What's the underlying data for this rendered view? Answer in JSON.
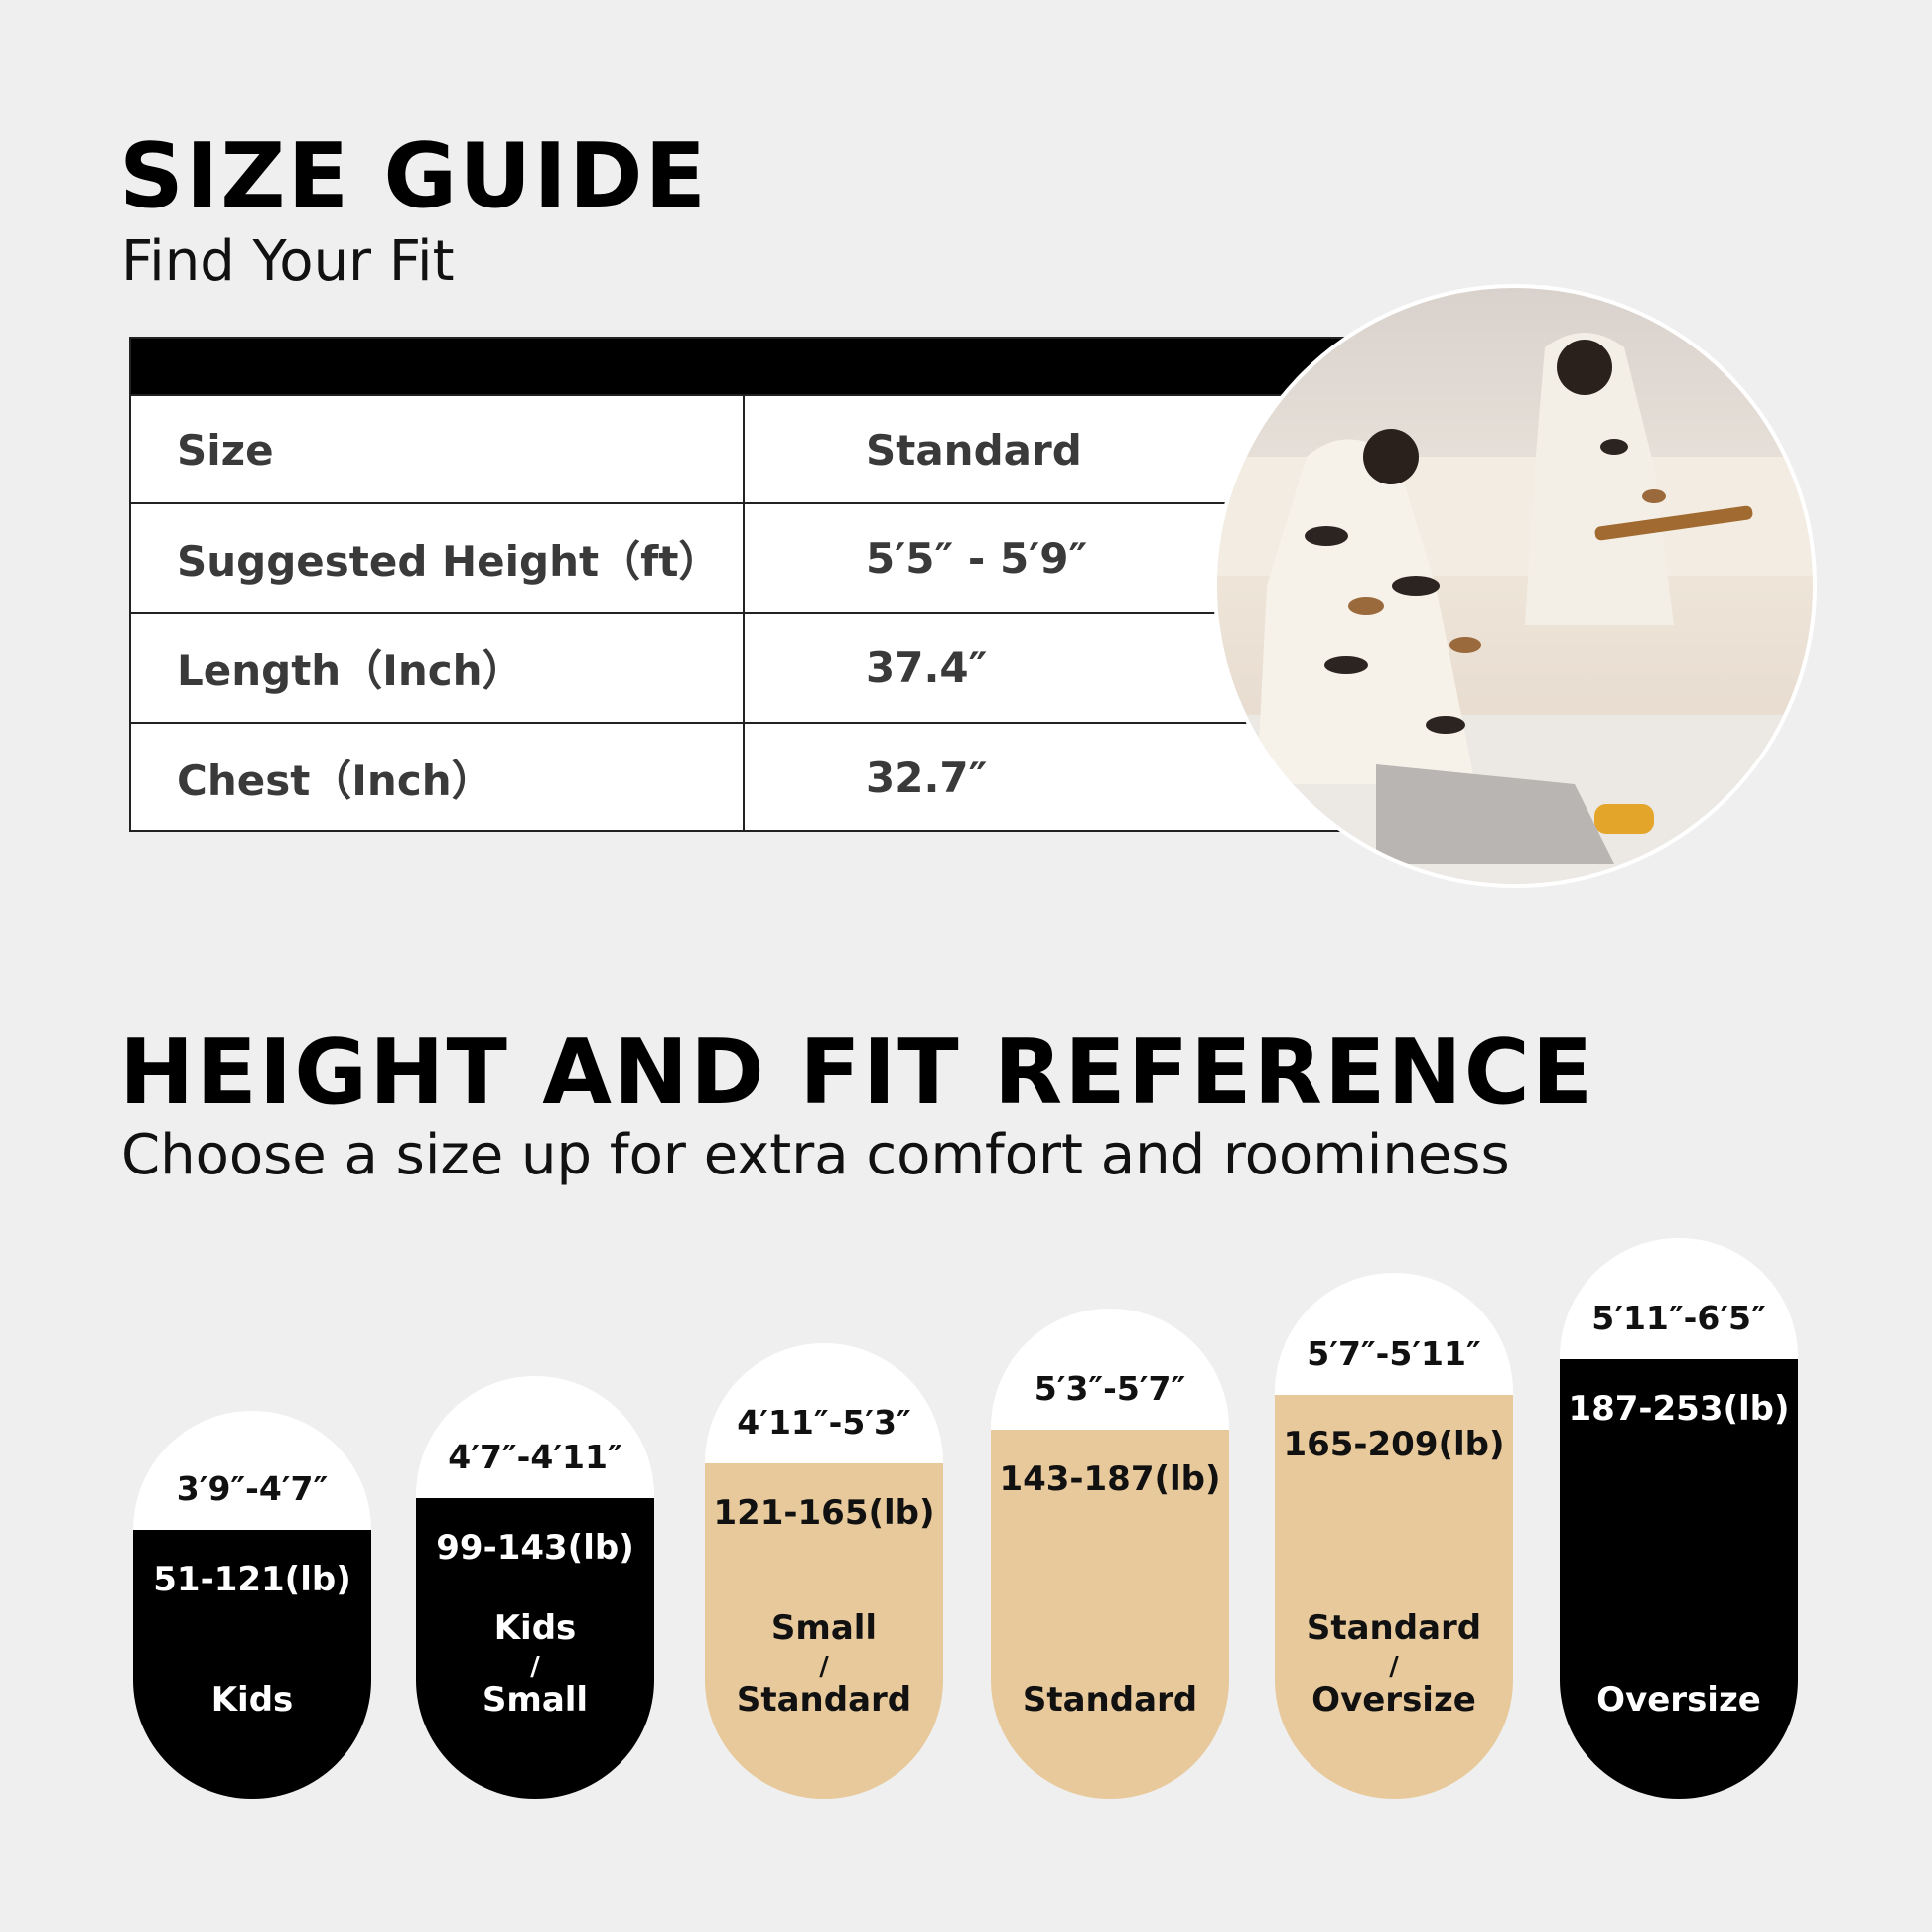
{
  "header": {
    "title": "SIZE GUIDE",
    "subtitle": "Find Your Fit"
  },
  "size_table": {
    "rows": [
      {
        "label": "Size",
        "value": "Standard"
      },
      {
        "label": "Suggested Height（ft）",
        "value": "5′5″ - 5′9″"
      },
      {
        "label": "Length（Inch）",
        "value": "37.4″"
      },
      {
        "label": "Chest（Inch）",
        "value": "32.7″"
      }
    ]
  },
  "reference": {
    "title": "HEIGHT AND FIT REFERENCE",
    "subtitle": "Choose a size up for extra comfort and roominess",
    "pills": [
      {
        "height": "3′9″-4′7″",
        "weight": "51-121(lb)",
        "fit": [
          "Kids"
        ],
        "color": "#000000"
      },
      {
        "height": "4′7″-4′11″",
        "weight": "99-143(lb)",
        "fit": [
          "Kids",
          "Small"
        ],
        "color": "#000000"
      },
      {
        "height": "4′11″-5′3″",
        "weight": "121-165(lb)",
        "fit": [
          "Small",
          "Standard"
        ],
        "color": "#e8c99b"
      },
      {
        "height": "5′3″-5′7″",
        "weight": "143-187(lb)",
        "fit": [
          "Standard"
        ],
        "color": "#e8c99b"
      },
      {
        "height": "5′7″-5′11″",
        "weight": "165-209(lb)",
        "fit": [
          "Standard",
          "Oversize"
        ],
        "color": "#e8c99b"
      },
      {
        "height": "5′11″-6′5″",
        "weight": "187-253(lb)",
        "fit": [
          "Oversize"
        ],
        "color": "#000000"
      }
    ],
    "separator": "/"
  }
}
